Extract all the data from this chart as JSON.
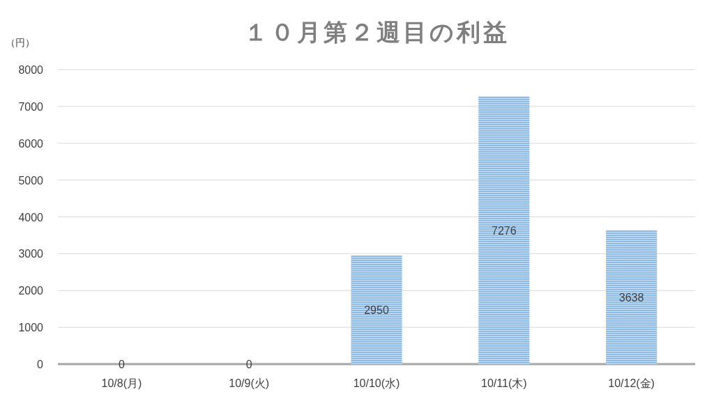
{
  "chart_data": {
    "type": "bar",
    "title": "１０月第２週目の利益",
    "ylabel": "（円）",
    "categories": [
      "10/8(月)",
      "10/9(火)",
      "10/10(水)",
      "10/11(木)",
      "10/12(金)"
    ],
    "values": [
      0,
      0,
      2950,
      7276,
      3638
    ],
    "color": "#8dbbe6",
    "ylim": [
      0,
      8000
    ],
    "yticks": [
      0,
      1000,
      2000,
      3000,
      4000,
      5000,
      6000,
      7000,
      8000
    ],
    "grid": "y",
    "data_labels": true
  }
}
